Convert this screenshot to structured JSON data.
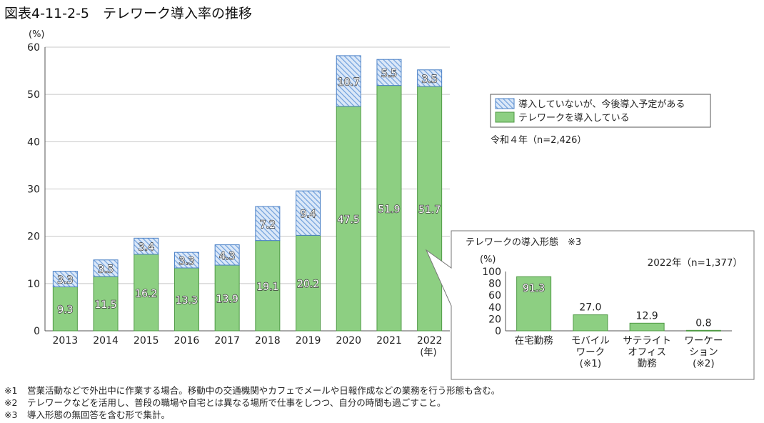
{
  "title": "図表4-11-2-5　テレワーク導入率の推移",
  "chart_data": [
    {
      "type": "bar",
      "stacked": true,
      "y_unit": "(%)",
      "x_unit": "(年)",
      "ylim": [
        0,
        60
      ],
      "yticks": [
        0,
        10,
        20,
        30,
        40,
        50,
        60
      ],
      "grid": true,
      "legend_position": "right",
      "categories": [
        "2013",
        "2014",
        "2015",
        "2016",
        "2017",
        "2018",
        "2019",
        "2020",
        "2021",
        "2022"
      ],
      "series": [
        {
          "name": "テレワークを導入している",
          "color": "#8dcf82",
          "values": [
            9.3,
            11.5,
            16.2,
            13.3,
            13.9,
            19.1,
            20.2,
            47.5,
            51.9,
            51.7
          ]
        },
        {
          "name": "導入していないが、今後導入予定がある",
          "color": "#aac8ee",
          "pattern": "diagonal-hatch",
          "values": [
            3.3,
            3.5,
            3.4,
            3.3,
            4.3,
            7.2,
            9.4,
            10.7,
            5.5,
            3.5
          ]
        }
      ],
      "annotation": "令和４年（n=2,426）"
    },
    {
      "type": "bar",
      "title": "テレワークの導入形態　※3",
      "subtitle": "2022年（n=1,377）",
      "y_unit": "(%)",
      "ylim": [
        0,
        100
      ],
      "yticks": [
        0,
        20,
        40,
        60,
        80,
        100
      ],
      "categories": [
        [
          "在宅勤務"
        ],
        [
          "モバイル",
          "ワーク",
          "(※1)"
        ],
        [
          "サテライト",
          "オフィス",
          "勤務"
        ],
        [
          "ワーケー",
          "ション",
          "(※2)"
        ]
      ],
      "values": [
        91.3,
        27.0,
        12.9,
        0.8
      ],
      "value_labels": [
        "91.3",
        "27.0",
        "12.9",
        "0.8"
      ],
      "color": "#8dcf82"
    }
  ],
  "notes": [
    {
      "mark": "※1",
      "text": "営業活動などで外出中に作業する場合。移動中の交通機関やカフェでメールや日報作成などの業務を行う形態も含む。"
    },
    {
      "mark": "※2",
      "text": "テレワークなどを活用し、普段の職場や自宅とは異なる場所で仕事をしつつ、自分の時間も過ごすこと。"
    },
    {
      "mark": "※3",
      "text": "導入形態の無回答を含む形で集計。"
    }
  ]
}
